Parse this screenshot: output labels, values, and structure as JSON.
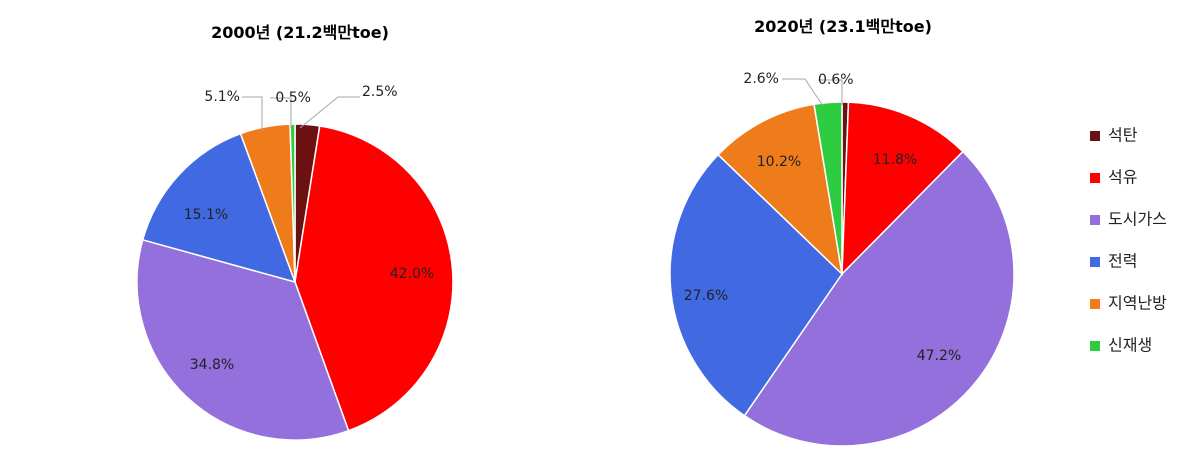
{
  "categories": [
    "석탄",
    "석유",
    "도시가스",
    "전력",
    "지역난방",
    "신재생"
  ],
  "colors": [
    "#6b1111",
    "#ff0000",
    "#9370db",
    "#4169e1",
    "#ef7c1a",
    "#2ecc40"
  ],
  "legend": {
    "position": "right"
  },
  "chart_data": [
    {
      "type": "pie",
      "title": "2000년  (21.2백만toe)",
      "categories": [
        "석탄",
        "석유",
        "도시가스",
        "전력",
        "지역난방",
        "신재생"
      ],
      "values": [
        2.5,
        42.0,
        34.8,
        15.1,
        5.1,
        0.5
      ],
      "labels": [
        "2.5%",
        "42.0%",
        "34.8%",
        "15.1%",
        "5.1%",
        "0.5%"
      ]
    },
    {
      "type": "pie",
      "title": "2020년  (23.1백만toe)",
      "categories": [
        "석탄",
        "석유",
        "도시가스",
        "전력",
        "지역난방",
        "신재생"
      ],
      "values": [
        0.6,
        11.8,
        47.2,
        27.6,
        10.2,
        2.6
      ],
      "labels": [
        "0.6%",
        "11.8%",
        "47.2%",
        "27.6%",
        "10.2%",
        "2.6%"
      ]
    }
  ]
}
